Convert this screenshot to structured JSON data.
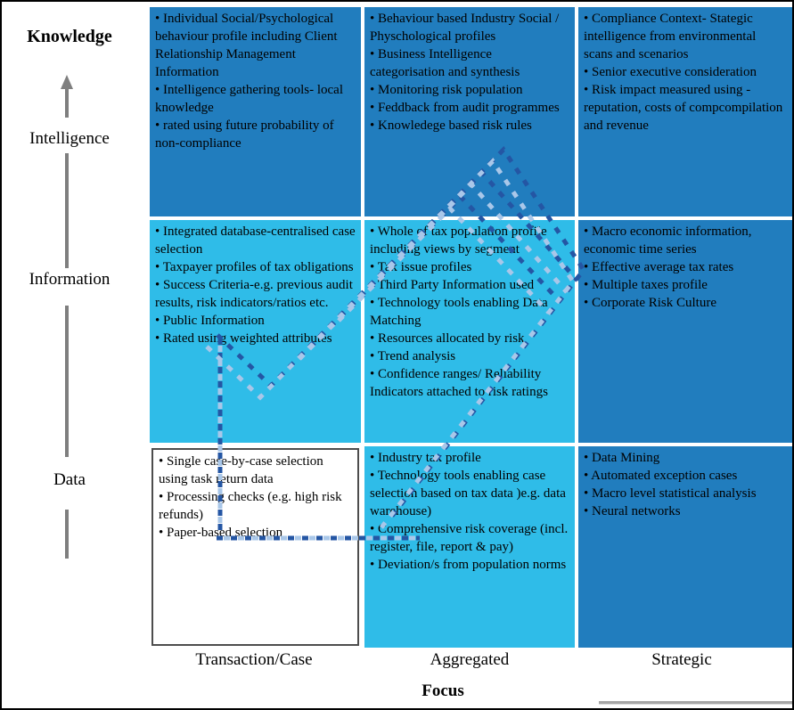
{
  "palette": {
    "cell_dark": "#217DBE",
    "cell_light": "#2FBCE8",
    "cell_white": "#FFFFFF",
    "dash_dark": "#2456A4",
    "dash_light": "#A9C7E9",
    "axis_gray": "#7F7F7F",
    "frame": "#000000"
  },
  "y_axis": {
    "items": [
      {
        "label": "Knowledge",
        "bold": true
      },
      {
        "label": "Intelligence",
        "bold": false
      },
      {
        "label": "Information",
        "bold": false
      },
      {
        "label": "Data",
        "bold": false
      }
    ]
  },
  "x_axis": {
    "labels": [
      "Transaction/Case",
      "Aggregated",
      "Strategic"
    ],
    "title": "Focus"
  },
  "matrix": {
    "cells": [
      {
        "row": "knowledge-intelligence",
        "col": "transaction-case",
        "tone": "dark",
        "items": [
          "Individual Social/Psychological behaviour profile including Client Relationship Management Information",
          "Intelligence gathering tools- local knowledge",
          "rated using future probability of non-compliance"
        ]
      },
      {
        "row": "knowledge-intelligence",
        "col": "aggregated",
        "tone": "dark",
        "items": [
          "Behaviour based Industry Social / Physchological profiles",
          "Business Intelligence categorisation and synthesis",
          "Monitoring risk population",
          "Feddback from audit programmes",
          "Knowledege based risk rules"
        ]
      },
      {
        "row": "knowledge-intelligence",
        "col": "strategic",
        "tone": "dark",
        "items": [
          "Compliance Context- Stategic intelligence from environmental scans and scenarios",
          "Senior executive consideration",
          "Risk impact measured using - reputation, costs of compcompilation and revenue"
        ]
      },
      {
        "row": "information",
        "col": "transaction-case",
        "tone": "light",
        "items": [
          "Integrated database-centralised case selection",
          "Taxpayer profiles of tax obligations",
          "Success Criteria-e.g. previous audit results, risk indicators/ratios etc.",
          "Public Information",
          "Rated using weighted attributes"
        ]
      },
      {
        "row": "information",
        "col": "aggregated",
        "tone": "light",
        "items": [
          "Whole of tax population profile including views by segment",
          "Tax issue profiles",
          "Third Party Information used",
          "Technology tools enabling Data Matching",
          "Resources allocated by risk",
          "Trend analysis",
          "Confidence ranges/ Reliability Indicators attached to risk ratings"
        ]
      },
      {
        "row": "information",
        "col": "strategic",
        "tone": "dark",
        "items": [
          "Macro economic information, economic time series",
          "Effective average tax rates",
          "Multiple taxes profile",
          "Corporate Risk Culture"
        ]
      },
      {
        "row": "data",
        "col": "transaction-case",
        "tone": "white",
        "items": [
          "Single case-by-case selection using task return data",
          "Processing checks (e.g. high risk refunds)",
          "Paper-based selection"
        ]
      },
      {
        "row": "data",
        "col": "aggregated",
        "tone": "light",
        "items": [
          "Industry tax profile",
          "Technology tools enabling case selection based on tax data )e.g. data warehouse)",
          "Comprehensive risk coverage (incl. register, file, report & pay)",
          "Deviation/s from population norms"
        ]
      },
      {
        "row": "data",
        "col": "strategic",
        "tone": "dark",
        "items": [
          "Data Mining",
          "Automated exception cases",
          "Macro level statistical analysis",
          "Neural networks"
        ]
      }
    ]
  }
}
